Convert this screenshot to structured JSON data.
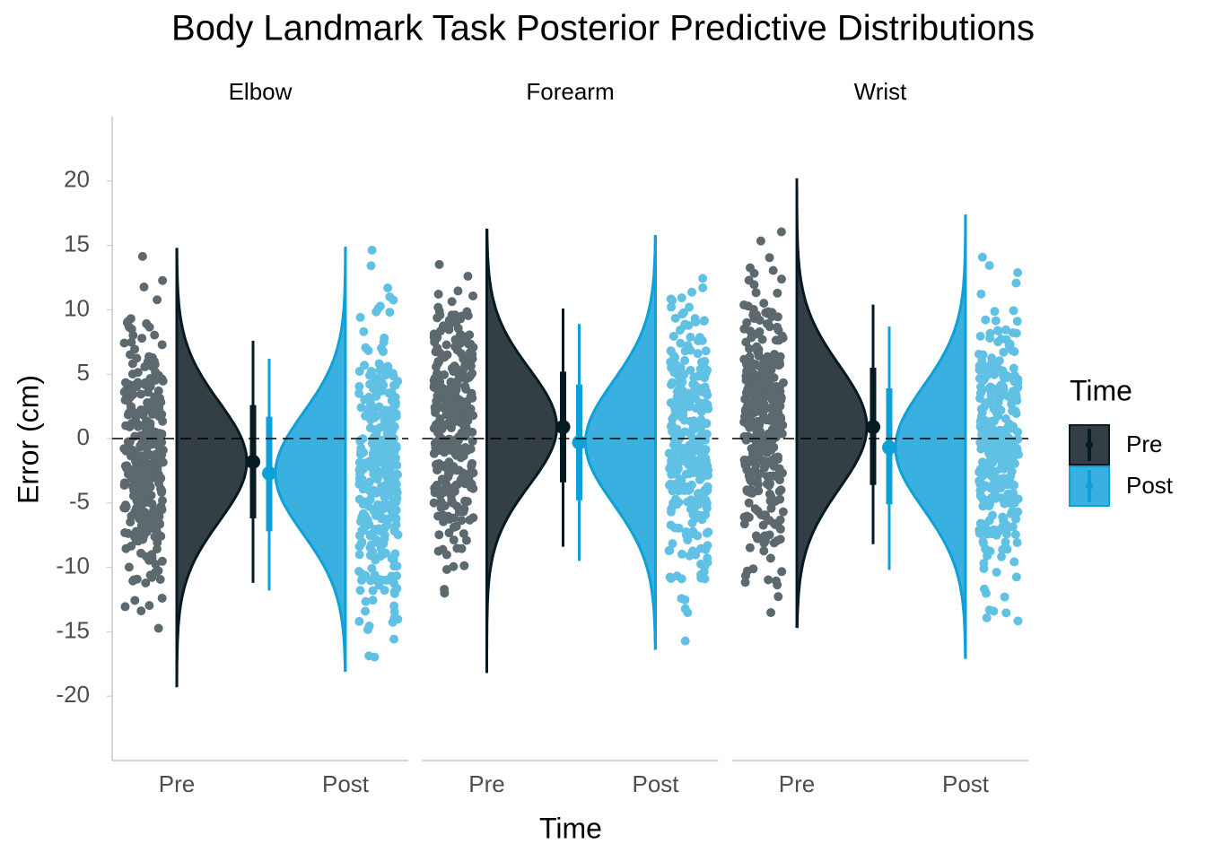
{
  "chart_data": {
    "type": "raincloud",
    "title": "Body Landmark Task Posterior Predictive Distributions",
    "x_label": "Time",
    "y_label": "Error (cm)",
    "legend_title": "Time",
    "categories": [
      "Pre",
      "Post"
    ],
    "colors": [
      "#061a23",
      "#0ea0d8"
    ],
    "density_colors": [
      "#333f44",
      "#3ab0e0"
    ],
    "ylim": [
      -25,
      25
    ],
    "yticks": [
      -20,
      -15,
      -10,
      -5,
      0,
      5,
      10,
      15,
      20
    ],
    "reference_line": 0,
    "facets": [
      {
        "name": "Elbow",
        "groups": [
          {
            "median": -1.8,
            "inner": [
              -6.2,
              2.6
            ],
            "outer": [
              -11.2,
              7.6
            ],
            "range": [
              -19.2,
              14.7
            ]
          },
          {
            "median": -2.7,
            "inner": [
              -7.2,
              1.7
            ],
            "outer": [
              -11.8,
              6.2
            ],
            "range": [
              -18,
              14.8
            ]
          }
        ]
      },
      {
        "name": "Forearm",
        "groups": [
          {
            "median": 0.9,
            "inner": [
              -3.4,
              5.2
            ],
            "outer": [
              -8.4,
              10.1
            ],
            "range": [
              -18.2,
              16.2
            ]
          },
          {
            "median": -0.3,
            "inner": [
              -4.8,
              4.2
            ],
            "outer": [
              -9.5,
              8.9
            ],
            "range": [
              -16.3,
              15.7
            ]
          }
        ]
      },
      {
        "name": "Wrist",
        "groups": [
          {
            "median": 0.9,
            "inner": [
              -3.6,
              5.5
            ],
            "outer": [
              -8.2,
              10.4
            ],
            "range": [
              -14.6,
              20.2
            ]
          },
          {
            "median": -0.7,
            "inner": [
              -5.1,
              3.9
            ],
            "outer": [
              -10.2,
              8.7
            ],
            "range": [
              -17,
              17.3
            ]
          }
        ]
      }
    ]
  }
}
